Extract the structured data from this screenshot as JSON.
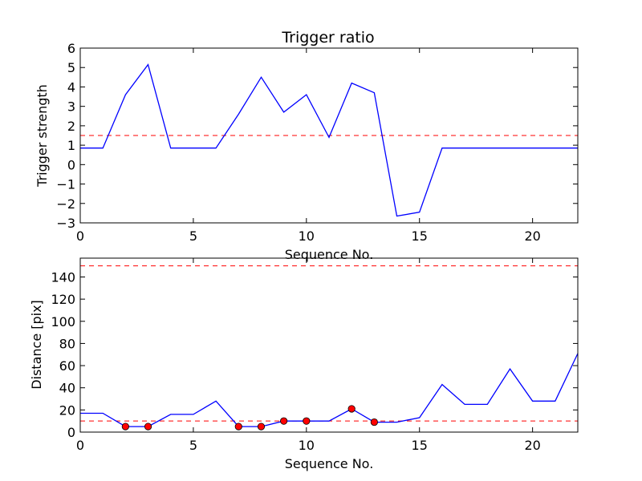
{
  "chart_data": [
    {
      "type": "line",
      "title": "Trigger ratio",
      "xlabel": "Sequence No.",
      "ylabel": "Trigger strength",
      "xlim": [
        0,
        22
      ],
      "ylim": [
        -3,
        6
      ],
      "xticks": [
        "0",
        "5",
        "10",
        "15",
        "20"
      ],
      "yticks": [
        "−3",
        "−2",
        "−1",
        "0",
        "1",
        "2",
        "3",
        "4",
        "5",
        "6"
      ],
      "grid": false,
      "series": [
        {
          "color": "#0000ff",
          "style": "solid",
          "x": [
            0,
            1,
            2,
            3,
            4,
            5,
            6,
            7,
            8,
            9,
            10,
            11,
            12,
            13,
            14,
            15,
            16,
            17,
            18,
            19,
            20,
            21,
            22
          ],
          "values": [
            0.85,
            0.85,
            3.6,
            5.15,
            0.85,
            0.85,
            0.85,
            2.6,
            4.5,
            2.7,
            3.6,
            1.4,
            4.2,
            3.7,
            -2.65,
            -2.45,
            0.85,
            0.85,
            0.85,
            0.85,
            0.85,
            0.85,
            0.85
          ]
        }
      ],
      "threshold": {
        "value": 1.5,
        "color": "#ff0000",
        "style": "dashed"
      }
    },
    {
      "type": "line",
      "title": "",
      "xlabel": "Sequence No.",
      "ylabel": "Distance [pix]",
      "xlim": [
        0,
        22
      ],
      "ylim": [
        0,
        157
      ],
      "xticks": [
        "0",
        "5",
        "10",
        "15",
        "20"
      ],
      "yticks": [
        "0",
        "20",
        "40",
        "60",
        "80",
        "100",
        "120",
        "140"
      ],
      "grid": false,
      "series": [
        {
          "color": "#0000ff",
          "style": "solid",
          "x": [
            0,
            1,
            2,
            3,
            4,
            5,
            6,
            7,
            8,
            9,
            10,
            11,
            12,
            13,
            14,
            15,
            16,
            17,
            18,
            19,
            20,
            21,
            22
          ],
          "values": [
            17,
            17,
            5,
            5,
            16,
            16,
            28,
            5,
            5,
            10,
            10,
            10,
            21,
            9,
            9,
            13,
            43,
            25,
            25,
            57,
            28,
            28,
            71
          ]
        }
      ],
      "markers": {
        "color": "#ff0000",
        "x": [
          2,
          3,
          7,
          8,
          9,
          10,
          12,
          13
        ],
        "values": [
          5,
          5,
          5,
          5,
          10,
          10,
          21,
          9
        ]
      },
      "thresholds": [
        {
          "value": 10,
          "color": "#ff0000",
          "style": "dashed"
        },
        {
          "value": 150,
          "color": "#ff0000",
          "style": "dashed"
        }
      ]
    }
  ]
}
